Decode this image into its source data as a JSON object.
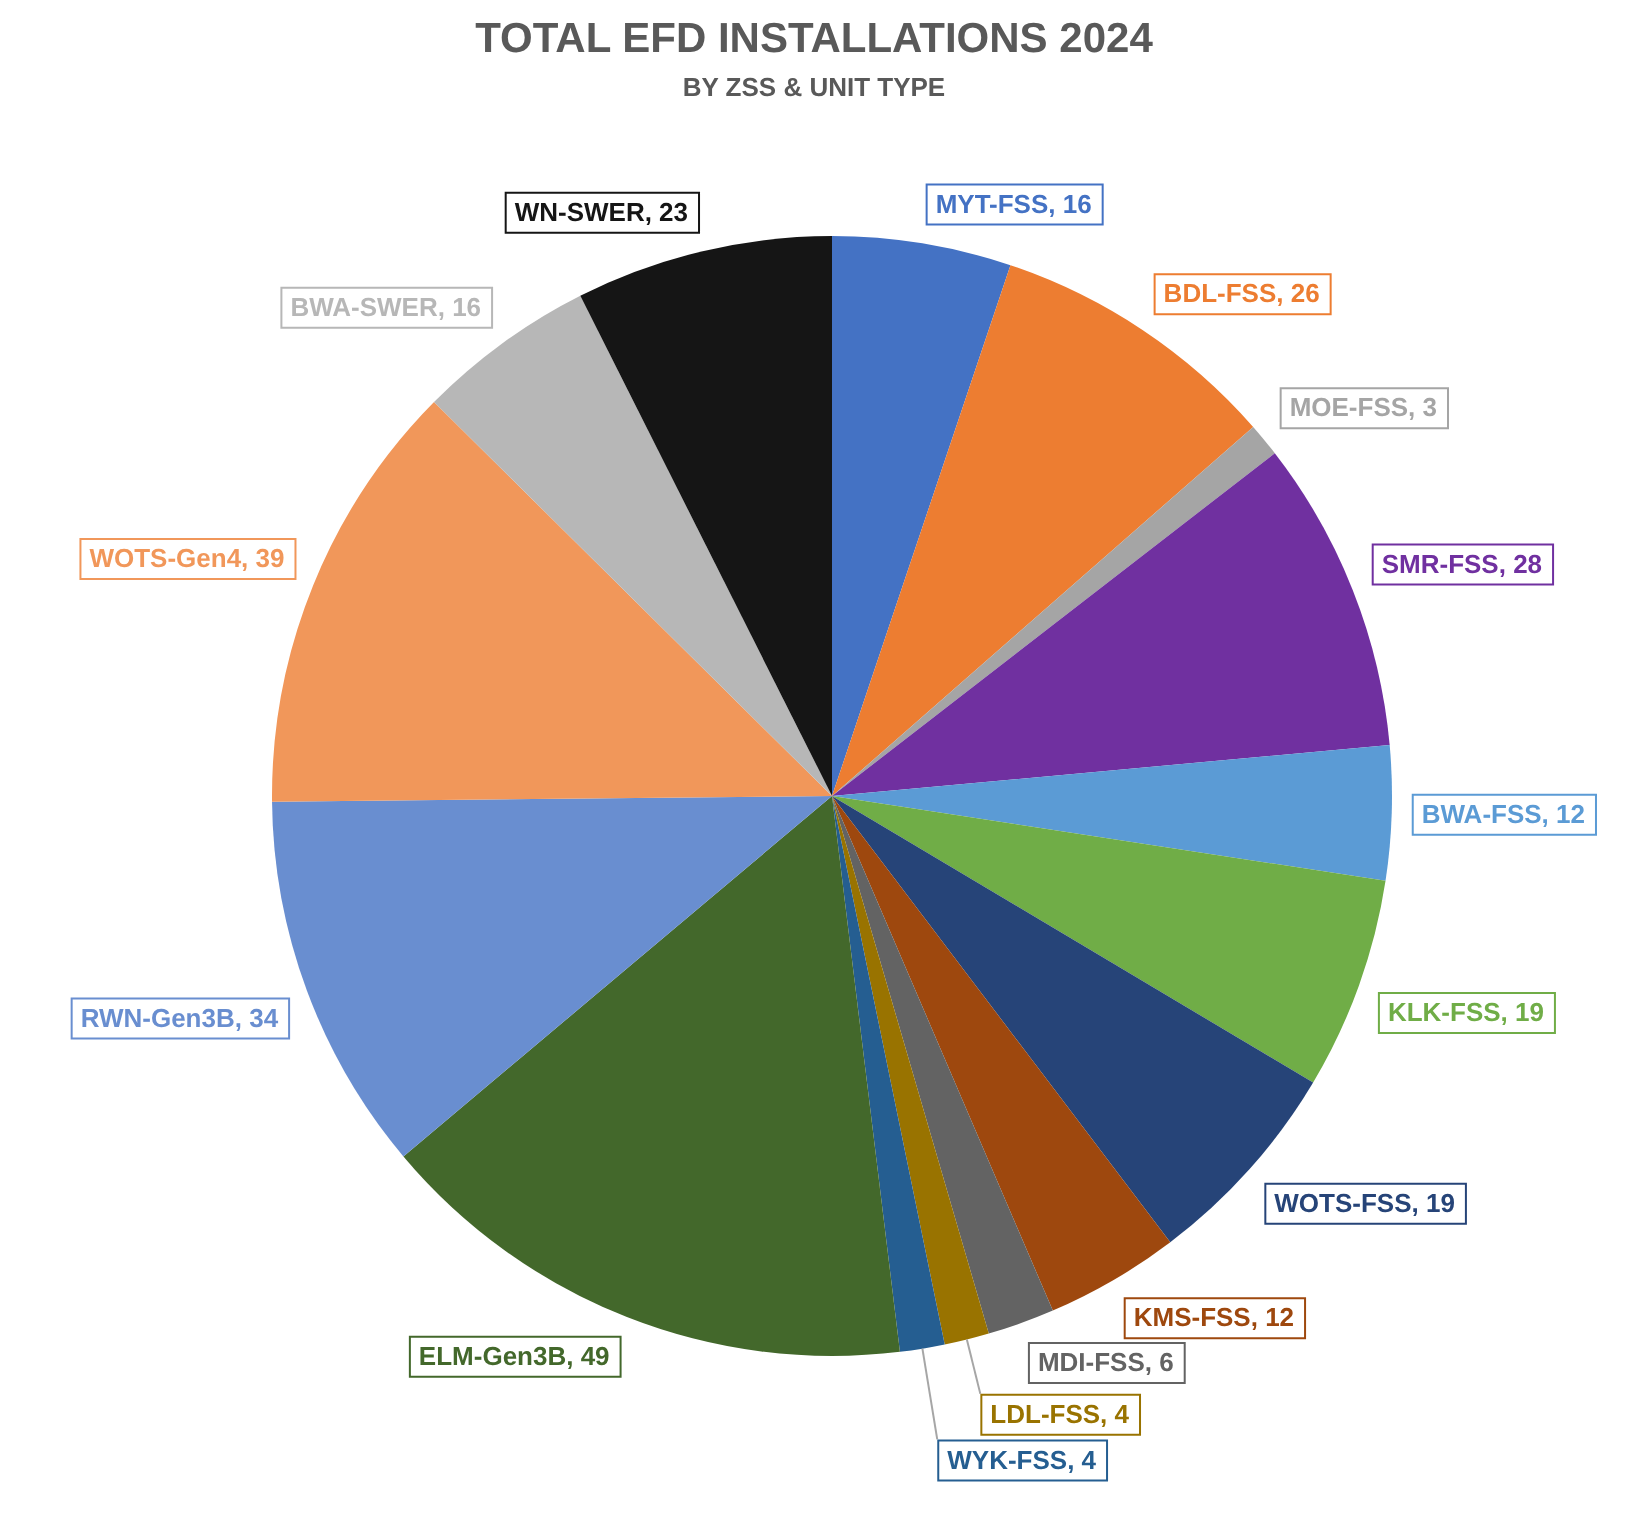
{
  "chart_data": {
    "type": "pie",
    "title": "TOTAL EFD INSTALLATIONS 2024",
    "subtitle": "BY ZSS & UNIT TYPE",
    "categories": [
      "MYT-FSS",
      "BDL-FSS",
      "MOE-FSS",
      "SMR-FSS",
      "BWA-FSS",
      "KLK-FSS",
      "WOTS-FSS",
      "KMS-FSS",
      "MDI-FSS",
      "LDL-FSS",
      "WYK-FSS",
      "ELM-Gen3B",
      "RWN-Gen3B",
      "WOTS-Gen4",
      "BWA-SWER",
      "WN-SWER"
    ],
    "values": [
      16,
      26,
      3,
      28,
      12,
      19,
      19,
      12,
      6,
      4,
      4,
      49,
      34,
      39,
      16,
      23
    ],
    "value_labels": [
      ", 16",
      ", 26",
      ", 3",
      ", 28",
      ", 12",
      ", 19",
      ", 19",
      ", 12",
      ", 6",
      ", 4",
      ", 4",
      ", 49",
      ", 34",
      ", 39",
      ", 16",
      ", 23"
    ],
    "colors": [
      "#4472c4",
      "#ed7d31",
      "#a5a5a5",
      "#7030a0",
      "#5b9bd5",
      "#70ad47",
      "#264478",
      "#9e480e",
      "#636363",
      "#997300",
      "#255e91",
      "#43682b",
      "#698ed0",
      "#f1975a",
      "#b7b7b7",
      "#151515"
    ]
  }
}
